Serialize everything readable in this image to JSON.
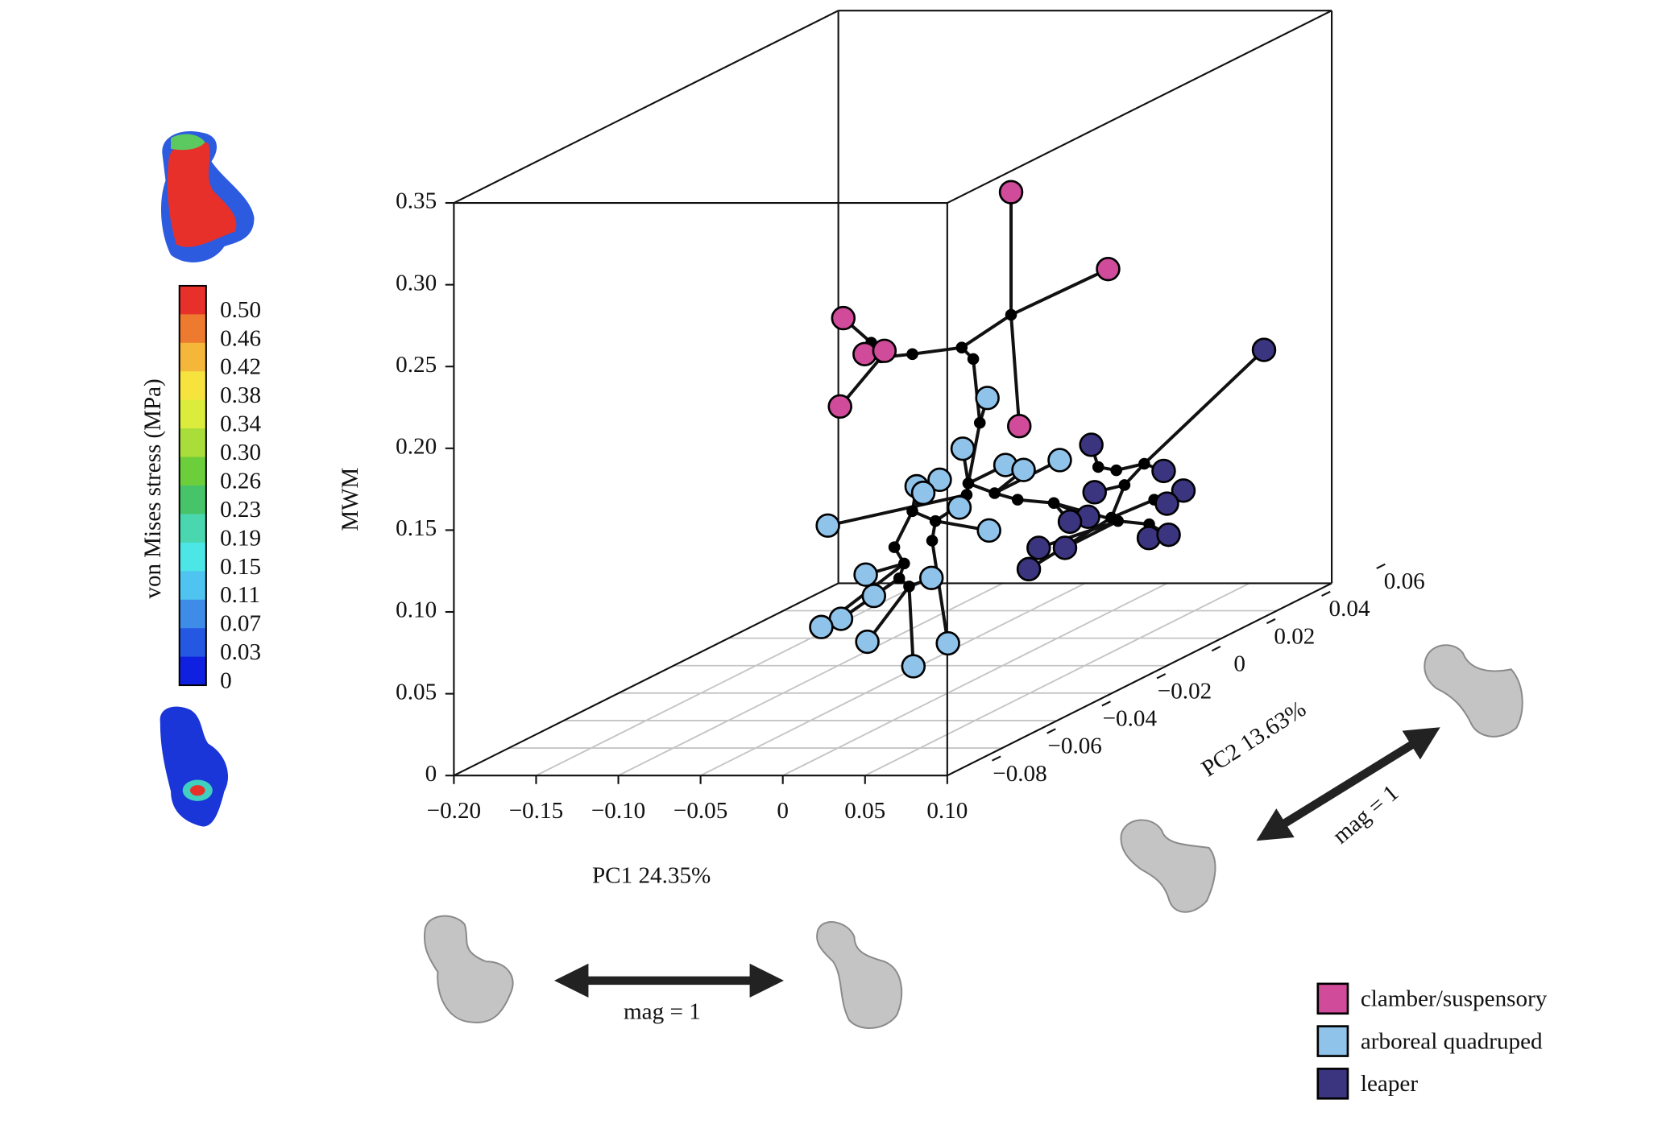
{
  "chart_data": {
    "type": "scatter3d",
    "xlabel": "PC1 24.35%",
    "ylabel": "PC2 13.63%",
    "zlabel": "MWM",
    "xlim": [
      -0.2,
      0.1
    ],
    "ylim": [
      -0.08,
      0.06
    ],
    "zlim": [
      0,
      0.35
    ],
    "xticks": [
      {
        "value": -0.2,
        "label": "−0.20"
      },
      {
        "value": -0.15,
        "label": "−0.15"
      },
      {
        "value": -0.1,
        "label": "−0.10"
      },
      {
        "value": -0.05,
        "label": "−0.05"
      },
      0,
      0.05,
      {
        "value": 0.1,
        "label": "0.10"
      }
    ],
    "yticks": [
      {
        "value": -0.08,
        "label": "−0.08"
      },
      {
        "value": -0.06,
        "label": "−0.06"
      },
      {
        "value": -0.04,
        "label": "−0.04"
      },
      {
        "value": -0.02,
        "label": "−0.02"
      },
      0,
      0.02,
      0.04,
      0.06
    ],
    "zticks": [
      0,
      0.05,
      {
        "value": 0.1,
        "label": "0.10"
      },
      0.15,
      {
        "value": 0.2,
        "label": "0.20"
      },
      0.25,
      {
        "value": 0.3,
        "label": "0.30"
      },
      0.35
    ],
    "grid": true,
    "series": [
      {
        "name": "clamber/suspensory",
        "color": "#d14b9b",
        "x": [
          0.072,
          0.131,
          -0.03,
          -0.017,
          -0.005,
          -0.032,
          0.077
        ],
        "y": [
          -0.04,
          -0.04,
          -0.04,
          -0.04,
          -0.04,
          -0.04,
          -0.04
        ],
        "z": [
          0.323,
          0.276,
          0.246,
          0.224,
          0.226,
          0.192,
          0.18
        ]
      },
      {
        "name": "arboreal quadruped",
        "color": "#8fc3ea",
        "x": [
          0.091,
          0.076,
          0.102,
          0.113,
          0.135,
          0.062,
          0.048,
          0.052,
          0.074,
          0.092,
          -0.006,
          0.017,
          0.057,
          0.022,
          0.002,
          -0.01,
          0.018,
          0.067,
          0.046
        ],
        "y": [
          -0.06,
          -0.06,
          -0.06,
          -0.06,
          -0.06,
          -0.06,
          -0.06,
          -0.06,
          -0.06,
          -0.06,
          -0.06,
          -0.06,
          -0.06,
          -0.06,
          -0.06,
          -0.06,
          -0.06,
          -0.06,
          -0.06
        ],
        "z": [
          0.214,
          0.183,
          0.173,
          0.17,
          0.176,
          0.164,
          0.16,
          0.156,
          0.147,
          0.133,
          0.136,
          0.106,
          0.104,
          0.093,
          0.079,
          0.074,
          0.065,
          0.064,
          0.05
        ]
      },
      {
        "name": "leaper",
        "color": "#3b3580",
        "x": [
          0.159,
          0.054,
          0.098,
          0.056,
          0.11,
          0.1,
          0.052,
          0.041,
          0.089,
          0.101,
          0.022,
          0.038,
          0.016
        ],
        "y": [
          0,
          0,
          0,
          0,
          0,
          0,
          0,
          0,
          0,
          0,
          0,
          0,
          0
        ],
        "z": [
          0.193,
          0.135,
          0.119,
          0.106,
          0.107,
          0.099,
          0.091,
          0.088,
          0.078,
          0.08,
          0.072,
          0.072,
          0.059
        ]
      }
    ],
    "nodes": {
      "color": "#000000",
      "x": [
        0.072,
        0.012,
        0.042,
        0.049,
        -0.013,
        -0.007,
        0.053,
        0.046,
        0.062,
        0.076,
        0.098,
        0.125,
        0.136,
        0.153,
        0.141,
        0.159,
        0.133,
        0.137,
        0.156,
        0.045,
        0.038,
        0.024,
        0.001,
        0.012,
        0.007,
        0.004,
        0.01,
        0.026
      ],
      "y": [
        -0.04,
        -0.04,
        -0.04,
        -0.04,
        -0.04,
        -0.04,
        -0.04,
        -0.04,
        -0.04,
        -0.04,
        -0.04,
        -0.04,
        -0.04,
        -0.04,
        -0.04,
        -0.04,
        -0.04,
        -0.04,
        -0.04,
        -0.04,
        -0.04,
        -0.04,
        -0.04,
        -0.04,
        -0.04,
        -0.04,
        -0.04,
        -0.04
      ],
      "z": [
        0.248,
        0.224,
        0.228,
        0.221,
        0.231,
        0.222,
        0.182,
        0.145,
        0.139,
        0.135,
        0.133,
        0.155,
        0.153,
        0.157,
        0.144,
        0.135,
        0.124,
        0.122,
        0.12,
        0.138,
        0.13,
        0.11,
        0.106,
        0.128,
        0.096,
        0.087,
        0.082,
        0.122
      ]
    },
    "edges": [
      [
        0,
        39
      ],
      [
        1,
        39
      ],
      [
        6,
        39
      ],
      [
        39,
        41
      ],
      [
        41,
        40
      ],
      [
        40,
        44
      ],
      [
        44,
        43
      ],
      [
        43,
        2
      ],
      [
        43,
        4
      ],
      [
        44,
        3
      ],
      [
        44,
        5
      ],
      [
        41,
        42
      ],
      [
        42,
        45
      ],
      [
        45,
        7
      ],
      [
        45,
        46
      ],
      [
        26,
        52
      ],
      [
        52,
        51
      ],
      [
        51,
        50
      ],
      [
        50,
        27
      ],
      [
        52,
        28
      ],
      [
        52,
        53
      ],
      [
        53,
        29
      ],
      [
        53,
        55
      ],
      [
        55,
        56
      ],
      [
        56,
        57
      ],
      [
        57,
        35
      ],
      [
        57,
        34
      ],
      [
        55,
        54
      ],
      [
        54,
        30
      ],
      [
        54,
        31
      ],
      [
        49,
        32
      ],
      [
        49,
        33
      ],
      [
        56,
        37
      ],
      [
        56,
        36
      ],
      [
        55,
        38
      ],
      [
        48,
        49
      ],
      [
        49,
        56
      ],
      [
        47,
        48
      ],
      [
        46,
        47
      ],
      [
        47,
        10
      ],
      [
        47,
        11
      ],
      [
        46,
        9
      ],
      [
        46,
        8
      ],
      [
        46,
        58
      ],
      [
        58,
        59
      ],
      [
        59,
        15
      ],
      [
        59,
        66
      ],
      [
        66,
        16
      ],
      [
        66,
        60
      ],
      [
        60,
        24
      ],
      [
        66,
        62
      ],
      [
        62,
        13
      ],
      [
        62,
        14
      ],
      [
        62,
        12
      ],
      [
        62,
        61
      ],
      [
        58,
        17
      ],
      [
        61,
        63
      ],
      [
        63,
        18
      ],
      [
        63,
        64
      ],
      [
        64,
        65
      ],
      [
        65,
        19
      ],
      [
        64,
        20
      ],
      [
        64,
        21
      ],
      [
        63,
        22
      ],
      [
        65,
        25
      ],
      [
        65,
        23
      ]
    ],
    "colorbar": {
      "label": "von Mises stress (MPa)",
      "ticks": [
        {
          "value": 0.5,
          "label": "0.50"
        },
        0.46,
        0.42,
        0.38,
        0.34,
        {
          "value": 0.3,
          "label": "0.30"
        },
        0.26,
        0.23,
        0.19,
        0.15,
        0.11,
        0.07,
        0.03,
        0
      ],
      "colors": [
        "#e8302a",
        "#ee7a30",
        "#f5b73a",
        "#f6e33d",
        "#dcec3c",
        "#a8dd3a",
        "#6cce3a",
        "#47c46a",
        "#4ad7b0",
        "#4de6e6",
        "#4fc4f0",
        "#3f8be8",
        "#2458e3",
        "#1020e0"
      ]
    },
    "annotations": [
      "mag = 1",
      "mag = 1"
    ]
  }
}
